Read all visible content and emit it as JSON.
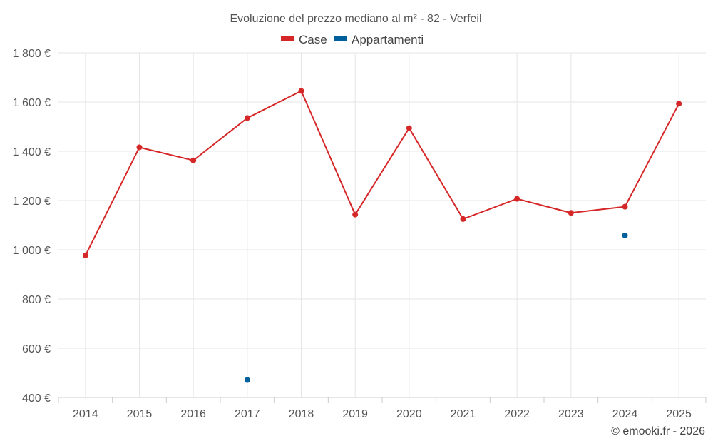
{
  "chart_data": {
    "type": "line",
    "title": "Evoluzione del prezzo mediano al m² - 82 - Verfeil",
    "xlabel": "",
    "ylabel": "",
    "categories": [
      "2014",
      "2015",
      "2016",
      "2017",
      "2018",
      "2019",
      "2020",
      "2021",
      "2022",
      "2023",
      "2024",
      "2025"
    ],
    "ylim": [
      400,
      1800
    ],
    "yticks": [
      400,
      600,
      800,
      1000,
      1200,
      1400,
      1600,
      1800
    ],
    "ytick_labels": [
      "400 €",
      "600 €",
      "800 €",
      "1 000 €",
      "1 200 €",
      "1 400 €",
      "1 600 €",
      "1 800 €"
    ],
    "grid": true,
    "legend_position": "top-center",
    "series": [
      {
        "name": "Case",
        "color": "#d62728",
        "style": "line-markers",
        "values": [
          977,
          1416,
          1363,
          1535,
          1645,
          1143,
          1494,
          1125,
          1207,
          1150,
          1175,
          1593
        ]
      },
      {
        "name": "Appartamenti",
        "color": "#00609c",
        "style": "markers",
        "values": [
          null,
          null,
          null,
          471,
          null,
          null,
          null,
          null,
          null,
          null,
          1058,
          null
        ]
      }
    ],
    "credit": "© emooki.fr - 2026"
  }
}
